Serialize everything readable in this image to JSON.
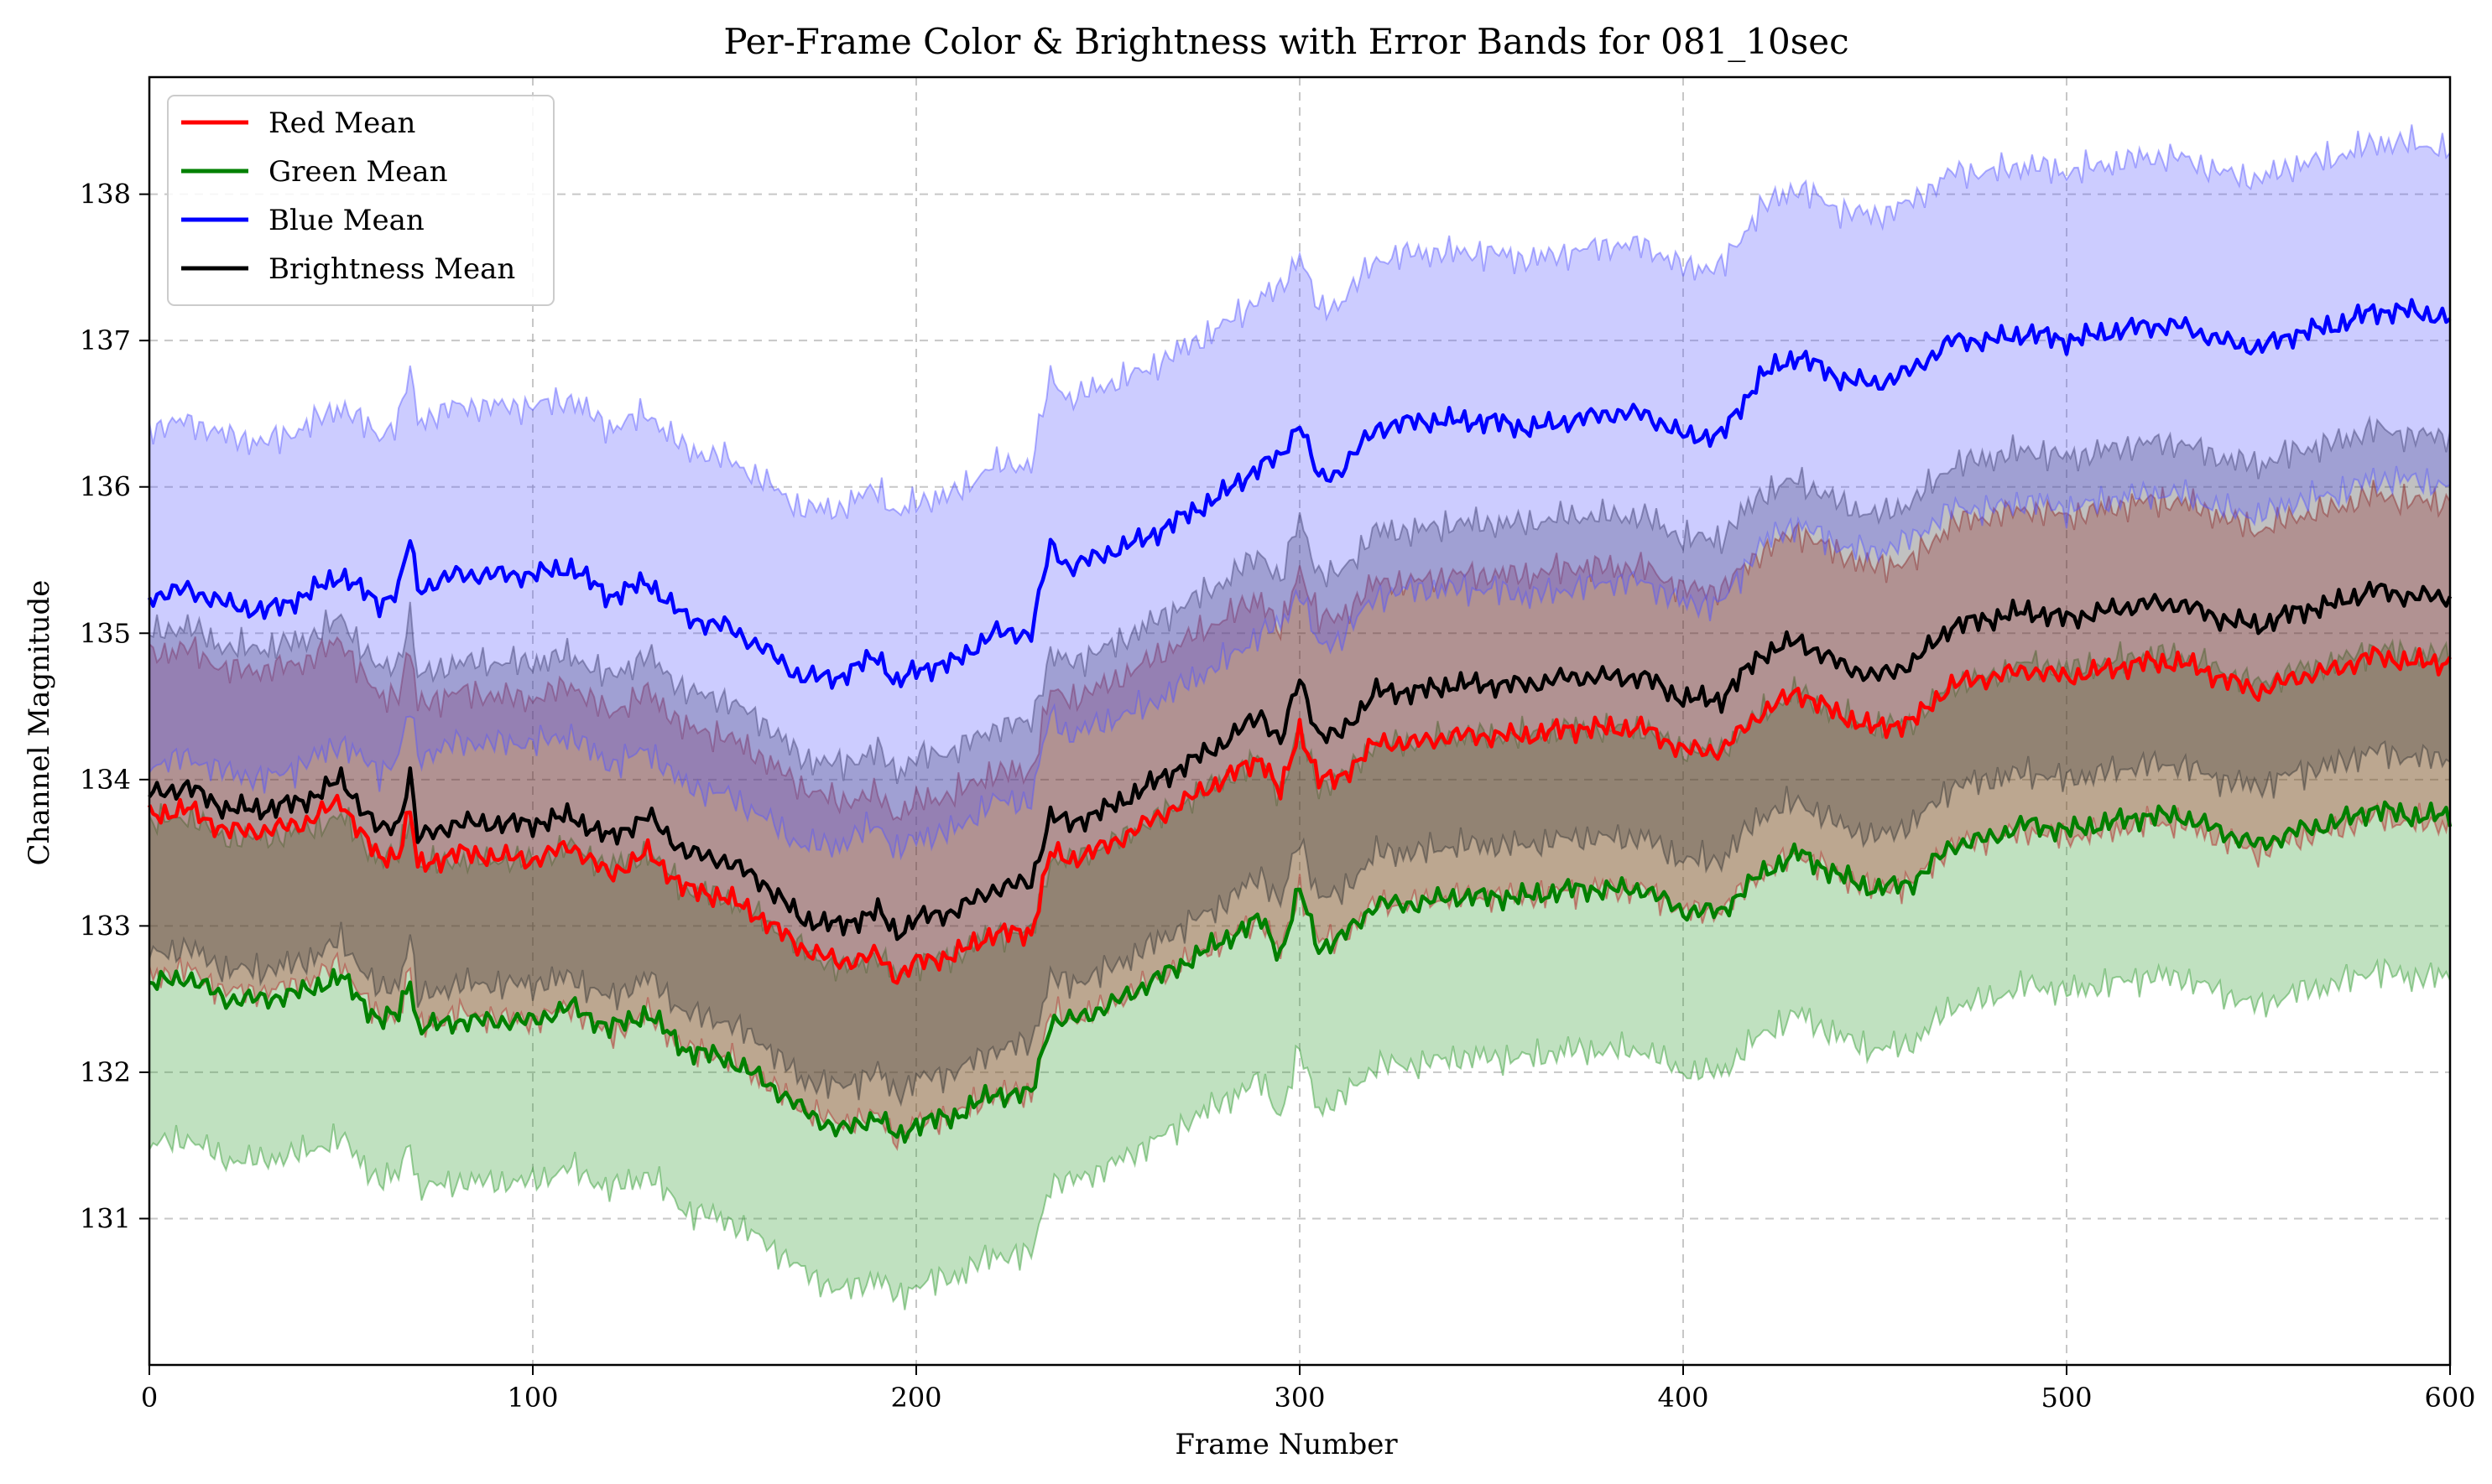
{
  "chart_data": {
    "type": "line",
    "title": "Per-Frame Color & Brightness with Error Bands for 081_10sec",
    "xlabel": "Frame Number",
    "ylabel": "Channel Magnitude",
    "xlim": [
      0,
      600
    ],
    "ylim": [
      130.0,
      138.8
    ],
    "x_ticks": [
      "0",
      "100",
      "200",
      "300",
      "400",
      "500",
      "600"
    ],
    "y_ticks": [
      "131",
      "132",
      "133",
      "134",
      "135",
      "136",
      "137",
      "138"
    ],
    "grid": true,
    "legend_position": "top-left",
    "series": [
      {
        "name": "Red Mean",
        "color": "#ff0000",
        "band_color": "#b22222",
        "band_halfwidth": 1.1,
        "points": [
          [
            0,
            133.75
          ],
          [
            10,
            133.8
          ],
          [
            20,
            133.65
          ],
          [
            30,
            133.65
          ],
          [
            40,
            133.7
          ],
          [
            50,
            133.85
          ],
          [
            60,
            133.45
          ],
          [
            65,
            133.5
          ],
          [
            68,
            133.8
          ],
          [
            70,
            133.4
          ],
          [
            80,
            133.5
          ],
          [
            100,
            133.45
          ],
          [
            110,
            133.55
          ],
          [
            120,
            133.35
          ],
          [
            130,
            133.5
          ],
          [
            140,
            133.25
          ],
          [
            150,
            133.2
          ],
          [
            160,
            133.05
          ],
          [
            170,
            132.85
          ],
          [
            180,
            132.75
          ],
          [
            190,
            132.8
          ],
          [
            195,
            132.65
          ],
          [
            200,
            132.75
          ],
          [
            210,
            132.8
          ],
          [
            220,
            132.95
          ],
          [
            230,
            132.95
          ],
          [
            235,
            133.5
          ],
          [
            240,
            133.45
          ],
          [
            250,
            133.55
          ],
          [
            260,
            133.7
          ],
          [
            270,
            133.85
          ],
          [
            280,
            134.0
          ],
          [
            290,
            134.15
          ],
          [
            295,
            133.9
          ],
          [
            300,
            134.35
          ],
          [
            305,
            134.0
          ],
          [
            310,
            134.0
          ],
          [
            320,
            134.25
          ],
          [
            330,
            134.25
          ],
          [
            340,
            134.3
          ],
          [
            350,
            134.3
          ],
          [
            360,
            134.3
          ],
          [
            370,
            134.35
          ],
          [
            380,
            134.35
          ],
          [
            390,
            134.35
          ],
          [
            400,
            134.2
          ],
          [
            410,
            134.2
          ],
          [
            420,
            134.45
          ],
          [
            430,
            134.6
          ],
          [
            440,
            134.45
          ],
          [
            450,
            134.35
          ],
          [
            460,
            134.4
          ],
          [
            470,
            134.65
          ],
          [
            480,
            134.7
          ],
          [
            490,
            134.75
          ],
          [
            500,
            134.7
          ],
          [
            510,
            134.75
          ],
          [
            520,
            134.8
          ],
          [
            530,
            134.8
          ],
          [
            540,
            134.7
          ],
          [
            550,
            134.6
          ],
          [
            560,
            134.7
          ],
          [
            570,
            134.75
          ],
          [
            580,
            134.85
          ],
          [
            590,
            134.8
          ],
          [
            600,
            134.8
          ]
        ]
      },
      {
        "name": "Green Mean",
        "color": "#008000",
        "band_color": "#2e9a2e",
        "band_halfwidth": 1.1,
        "points": [
          [
            0,
            132.6
          ],
          [
            10,
            132.65
          ],
          [
            20,
            132.5
          ],
          [
            30,
            132.5
          ],
          [
            40,
            132.55
          ],
          [
            50,
            132.65
          ],
          [
            60,
            132.35
          ],
          [
            65,
            132.4
          ],
          [
            68,
            132.65
          ],
          [
            70,
            132.3
          ],
          [
            80,
            132.35
          ],
          [
            100,
            132.35
          ],
          [
            110,
            132.45
          ],
          [
            120,
            132.3
          ],
          [
            130,
            132.4
          ],
          [
            140,
            132.15
          ],
          [
            150,
            132.1
          ],
          [
            160,
            131.95
          ],
          [
            170,
            131.75
          ],
          [
            180,
            131.6
          ],
          [
            190,
            131.7
          ],
          [
            195,
            131.55
          ],
          [
            200,
            131.65
          ],
          [
            210,
            131.7
          ],
          [
            220,
            131.85
          ],
          [
            230,
            131.85
          ],
          [
            235,
            132.35
          ],
          [
            240,
            132.35
          ],
          [
            250,
            132.45
          ],
          [
            260,
            132.6
          ],
          [
            270,
            132.75
          ],
          [
            280,
            132.9
          ],
          [
            290,
            133.05
          ],
          [
            295,
            132.8
          ],
          [
            300,
            133.25
          ],
          [
            305,
            132.85
          ],
          [
            310,
            132.9
          ],
          [
            320,
            133.15
          ],
          [
            330,
            133.15
          ],
          [
            340,
            133.2
          ],
          [
            350,
            133.2
          ],
          [
            360,
            133.2
          ],
          [
            370,
            133.25
          ],
          [
            380,
            133.25
          ],
          [
            390,
            133.25
          ],
          [
            400,
            133.1
          ],
          [
            410,
            133.1
          ],
          [
            420,
            133.35
          ],
          [
            430,
            133.5
          ],
          [
            440,
            133.35
          ],
          [
            450,
            133.25
          ],
          [
            460,
            133.3
          ],
          [
            470,
            133.55
          ],
          [
            480,
            133.6
          ],
          [
            490,
            133.7
          ],
          [
            500,
            133.65
          ],
          [
            510,
            133.7
          ],
          [
            520,
            133.75
          ],
          [
            530,
            133.75
          ],
          [
            540,
            133.65
          ],
          [
            550,
            133.55
          ],
          [
            560,
            133.65
          ],
          [
            570,
            133.7
          ],
          [
            580,
            133.8
          ],
          [
            590,
            133.75
          ],
          [
            600,
            133.75
          ]
        ]
      },
      {
        "name": "Blue Mean",
        "color": "#0000ff",
        "band_color": "#5555ff",
        "band_halfwidth": 1.15,
        "points": [
          [
            0,
            135.25
          ],
          [
            10,
            135.3
          ],
          [
            20,
            135.2
          ],
          [
            30,
            135.15
          ],
          [
            40,
            135.25
          ],
          [
            50,
            135.4
          ],
          [
            60,
            135.2
          ],
          [
            65,
            135.3
          ],
          [
            68,
            135.65
          ],
          [
            70,
            135.3
          ],
          [
            80,
            135.4
          ],
          [
            100,
            135.4
          ],
          [
            110,
            135.45
          ],
          [
            120,
            135.25
          ],
          [
            130,
            135.35
          ],
          [
            140,
            135.1
          ],
          [
            150,
            135.05
          ],
          [
            160,
            134.9
          ],
          [
            170,
            134.7
          ],
          [
            180,
            134.7
          ],
          [
            190,
            134.85
          ],
          [
            195,
            134.65
          ],
          [
            200,
            134.75
          ],
          [
            210,
            134.8
          ],
          [
            220,
            135.0
          ],
          [
            230,
            135.0
          ],
          [
            235,
            135.6
          ],
          [
            240,
            135.45
          ],
          [
            250,
            135.55
          ],
          [
            260,
            135.65
          ],
          [
            270,
            135.8
          ],
          [
            280,
            135.95
          ],
          [
            290,
            136.15
          ],
          [
            295,
            136.2
          ],
          [
            300,
            136.45
          ],
          [
            305,
            136.05
          ],
          [
            310,
            136.1
          ],
          [
            320,
            136.4
          ],
          [
            330,
            136.45
          ],
          [
            340,
            136.45
          ],
          [
            350,
            136.45
          ],
          [
            360,
            136.4
          ],
          [
            370,
            136.45
          ],
          [
            380,
            136.5
          ],
          [
            390,
            136.5
          ],
          [
            400,
            136.35
          ],
          [
            410,
            136.35
          ],
          [
            420,
            136.75
          ],
          [
            430,
            136.9
          ],
          [
            440,
            136.75
          ],
          [
            450,
            136.7
          ],
          [
            460,
            136.8
          ],
          [
            470,
            137.0
          ],
          [
            480,
            137.0
          ],
          [
            490,
            137.05
          ],
          [
            500,
            137.0
          ],
          [
            510,
            137.05
          ],
          [
            520,
            137.1
          ],
          [
            530,
            137.1
          ],
          [
            540,
            137.0
          ],
          [
            550,
            136.95
          ],
          [
            560,
            137.05
          ],
          [
            570,
            137.1
          ],
          [
            580,
            137.2
          ],
          [
            590,
            137.2
          ],
          [
            600,
            137.15
          ]
        ]
      },
      {
        "name": "Brightness Mean",
        "color": "#000000",
        "band_color": "#333333",
        "band_halfwidth": 1.1,
        "points": [
          [
            0,
            133.9
          ],
          [
            10,
            133.95
          ],
          [
            20,
            133.8
          ],
          [
            30,
            133.8
          ],
          [
            40,
            133.85
          ],
          [
            50,
            134.0
          ],
          [
            60,
            133.65
          ],
          [
            65,
            133.7
          ],
          [
            68,
            134.05
          ],
          [
            70,
            133.6
          ],
          [
            80,
            133.7
          ],
          [
            100,
            133.7
          ],
          [
            110,
            133.75
          ],
          [
            120,
            133.6
          ],
          [
            130,
            133.75
          ],
          [
            140,
            133.5
          ],
          [
            150,
            133.45
          ],
          [
            160,
            133.3
          ],
          [
            170,
            133.05
          ],
          [
            180,
            133.0
          ],
          [
            190,
            133.1
          ],
          [
            195,
            132.95
          ],
          [
            200,
            133.05
          ],
          [
            210,
            133.1
          ],
          [
            220,
            133.25
          ],
          [
            230,
            133.3
          ],
          [
            235,
            133.75
          ],
          [
            240,
            133.7
          ],
          [
            250,
            133.8
          ],
          [
            260,
            133.95
          ],
          [
            270,
            134.1
          ],
          [
            280,
            134.25
          ],
          [
            290,
            134.45
          ],
          [
            295,
            134.25
          ],
          [
            300,
            134.7
          ],
          [
            305,
            134.3
          ],
          [
            310,
            134.3
          ],
          [
            320,
            134.6
          ],
          [
            330,
            134.6
          ],
          [
            340,
            134.65
          ],
          [
            350,
            134.65
          ],
          [
            360,
            134.65
          ],
          [
            370,
            134.7
          ],
          [
            380,
            134.7
          ],
          [
            390,
            134.7
          ],
          [
            400,
            134.55
          ],
          [
            410,
            134.55
          ],
          [
            420,
            134.85
          ],
          [
            430,
            134.95
          ],
          [
            440,
            134.8
          ],
          [
            450,
            134.7
          ],
          [
            460,
            134.8
          ],
          [
            470,
            135.05
          ],
          [
            480,
            135.1
          ],
          [
            490,
            135.15
          ],
          [
            500,
            135.1
          ],
          [
            510,
            135.15
          ],
          [
            520,
            135.2
          ],
          [
            530,
            135.2
          ],
          [
            540,
            135.1
          ],
          [
            550,
            135.05
          ],
          [
            560,
            135.15
          ],
          [
            570,
            135.2
          ],
          [
            580,
            135.3
          ],
          [
            590,
            135.25
          ],
          [
            600,
            135.25
          ]
        ]
      }
    ]
  }
}
